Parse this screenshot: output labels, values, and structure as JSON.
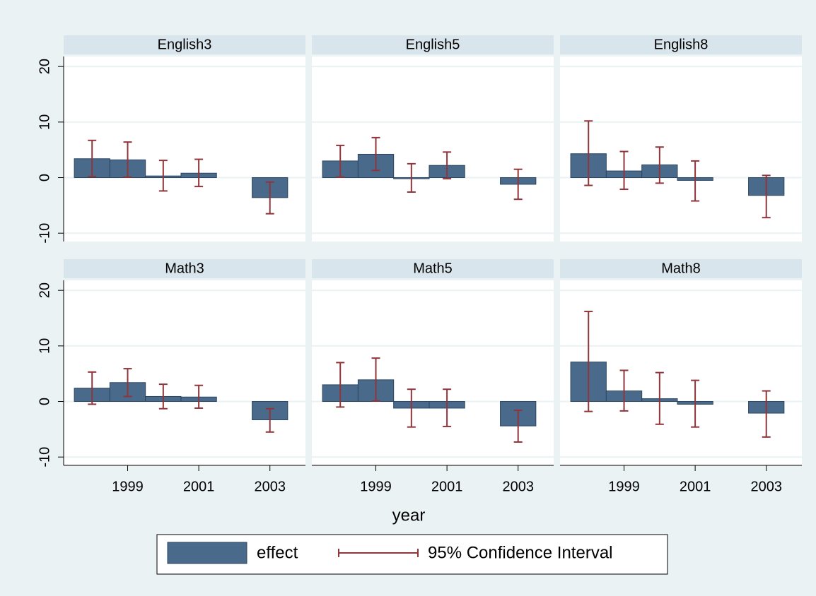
{
  "xlabel": "year",
  "legend": {
    "position": "bottom",
    "items": [
      "effect",
      "95% Confidence Interval"
    ]
  },
  "chart_data": [
    {
      "type": "bar",
      "title": "English3",
      "x": [
        1998,
        1999,
        2000,
        2001,
        2003
      ],
      "values": [
        3.4,
        3.2,
        0.3,
        0.8,
        -3.6
      ],
      "ci_low": [
        0.2,
        0.1,
        -2.4,
        -1.6,
        -6.5
      ],
      "ci_high": [
        6.7,
        6.4,
        3.1,
        3.3,
        -0.8
      ],
      "xlim": [
        1997.2,
        2004
      ],
      "xticks": [
        1999,
        2001,
        2003
      ],
      "ylim": [
        -11.5,
        21.8
      ],
      "yticks": [
        -10,
        0,
        10,
        20
      ],
      "grid": true,
      "color": "#4a6a8b",
      "ci_color": "#90353b"
    },
    {
      "type": "bar",
      "title": "English5",
      "x": [
        1998,
        1999,
        2000,
        2001,
        2003
      ],
      "values": [
        3.0,
        4.2,
        -0.2,
        2.2,
        -1.2
      ],
      "ci_low": [
        0.1,
        1.3,
        -2.6,
        -0.2,
        -3.9
      ],
      "ci_high": [
        5.8,
        7.2,
        2.5,
        4.6,
        1.5
      ],
      "xlim": [
        1997.2,
        2004
      ],
      "xticks": [
        1999,
        2001,
        2003
      ],
      "ylim": [
        -11.5,
        21.8
      ],
      "yticks": [
        -10,
        0,
        10,
        20
      ],
      "grid": true,
      "color": "#4a6a8b",
      "ci_color": "#90353b"
    },
    {
      "type": "bar",
      "title": "English8",
      "x": [
        1998,
        1999,
        2000,
        2001,
        2003
      ],
      "values": [
        4.3,
        1.2,
        2.3,
        -0.5,
        -3.2
      ],
      "ci_low": [
        -1.4,
        -2.1,
        -1.0,
        -4.2,
        -7.2
      ],
      "ci_high": [
        10.2,
        4.7,
        5.5,
        3.0,
        0.4
      ],
      "xlim": [
        1997.2,
        2004
      ],
      "xticks": [
        1999,
        2001,
        2003
      ],
      "ylim": [
        -11.5,
        21.8
      ],
      "yticks": [
        -10,
        0,
        10,
        20
      ],
      "grid": true,
      "color": "#4a6a8b",
      "ci_color": "#90353b"
    },
    {
      "type": "bar",
      "title": "Math3",
      "x": [
        1998,
        1999,
        2000,
        2001,
        2003
      ],
      "values": [
        2.4,
        3.4,
        0.9,
        0.8,
        -3.3
      ],
      "ci_low": [
        -0.5,
        0.9,
        -1.3,
        -1.2,
        -5.5
      ],
      "ci_high": [
        5.3,
        5.9,
        3.1,
        2.9,
        -1.3
      ],
      "xlim": [
        1997.2,
        2004
      ],
      "xticks": [
        1999,
        2001,
        2003
      ],
      "ylim": [
        -11.5,
        21.8
      ],
      "yticks": [
        -10,
        0,
        10,
        20
      ],
      "grid": true,
      "color": "#4a6a8b",
      "ci_color": "#90353b"
    },
    {
      "type": "bar",
      "title": "Math5",
      "x": [
        1998,
        1999,
        2000,
        2001,
        2003
      ],
      "values": [
        3.0,
        3.9,
        -1.2,
        -1.2,
        -4.4
      ],
      "ci_low": [
        -1.0,
        0.1,
        -4.6,
        -4.5,
        -7.3
      ],
      "ci_high": [
        7.0,
        7.8,
        2.2,
        2.2,
        -1.6
      ],
      "xlim": [
        1997.2,
        2004
      ],
      "xticks": [
        1999,
        2001,
        2003
      ],
      "ylim": [
        -11.5,
        21.8
      ],
      "yticks": [
        -10,
        0,
        10,
        20
      ],
      "grid": true,
      "color": "#4a6a8b",
      "ci_color": "#90353b"
    },
    {
      "type": "bar",
      "title": "Math8",
      "x": [
        1998,
        1999,
        2000,
        2001,
        2003
      ],
      "values": [
        7.1,
        1.9,
        0.5,
        -0.5,
        -2.1
      ],
      "ci_low": [
        -1.8,
        -1.7,
        -4.1,
        -4.6,
        -6.4
      ],
      "ci_high": [
        16.2,
        5.6,
        5.2,
        3.8,
        1.9
      ],
      "xlim": [
        1997.2,
        2004
      ],
      "xticks": [
        1999,
        2001,
        2003
      ],
      "ylim": [
        -11.5,
        21.8
      ],
      "yticks": [
        -10,
        0,
        10,
        20
      ],
      "grid": true,
      "color": "#4a6a8b",
      "ci_color": "#90353b"
    }
  ]
}
